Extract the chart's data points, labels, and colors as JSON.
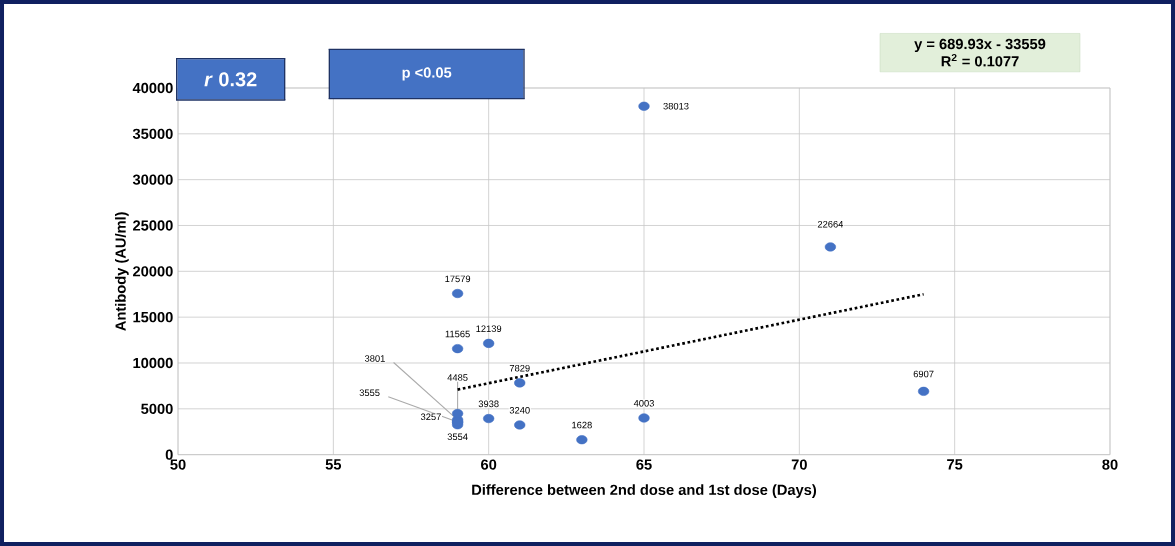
{
  "chart_data": {
    "type": "scatter",
    "xlabel": "Difference between 2nd dose and 1st dose (Days)",
    "ylabel": "Antibody (AU/ml)",
    "xlim": [
      50,
      80
    ],
    "xticks": [
      50,
      55,
      60,
      65,
      70,
      75,
      80
    ],
    "ylim": [
      0,
      40000
    ],
    "yticks": [
      0,
      5000,
      10000,
      15000,
      20000,
      25000,
      30000,
      35000,
      40000
    ],
    "grid": true,
    "series": [
      {
        "type": "scatter",
        "color": "#4472c4",
        "marker": "circle",
        "x": [
          59,
          59,
          59,
          59,
          59,
          59,
          59,
          60,
          60,
          61,
          61,
          63,
          65,
          65,
          71,
          74
        ],
        "values": [
          17579,
          11565,
          3801,
          3555,
          3257,
          3554,
          4485,
          12139,
          3938,
          7829,
          3240,
          1628,
          38013,
          4003,
          22664,
          6907
        ],
        "value_labels": [
          "17579",
          "11565",
          "3801",
          "3555",
          "3257",
          "3554",
          "4485",
          "12139",
          "3938",
          "7829",
          "3240",
          "1628",
          "38013",
          "4003",
          "22664",
          "6907"
        ]
      },
      {
        "type": "line",
        "color": "#000000",
        "line_style": "dotted",
        "marker": "none",
        "x": [
          59,
          74
        ],
        "values": [
          7100,
          17500
        ]
      }
    ],
    "annotations": [
      "*r* 0.32",
      "p <0.05",
      "y = 689.93x - 33559",
      "R$^{2}$ = 0.1077"
    ]
  }
}
